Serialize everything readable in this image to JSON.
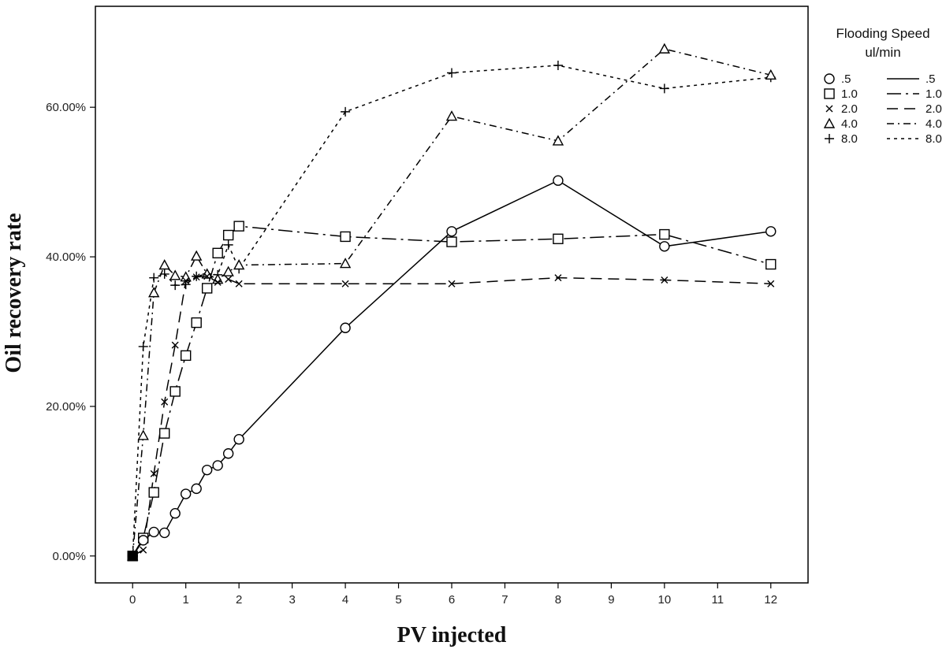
{
  "chart_data": {
    "type": "line",
    "xlabel": "PV injected",
    "ylabel": "Oil recovery rate",
    "xlim": [
      -0.7,
      12.7
    ],
    "ylim": [
      -0.036,
      0.735
    ],
    "xticks": [
      0,
      1,
      2,
      3,
      4,
      5,
      6,
      7,
      8,
      9,
      10,
      11,
      12
    ],
    "yticks": [
      0,
      0.2,
      0.4,
      0.6
    ],
    "ytick_labels": [
      "0.00%",
      "20.00%",
      "40.00%",
      "60.00%"
    ],
    "grid": false,
    "legend": {
      "title_lines": [
        "Flooding Speed",
        "ul/min"
      ],
      "placement": "outside-right"
    },
    "series": [
      {
        "name": ".5",
        "marker": "circle",
        "line": "solid",
        "points": [
          [
            0,
            0
          ],
          [
            0.2,
            0.021
          ],
          [
            0.4,
            0.032
          ],
          [
            0.6,
            0.031
          ],
          [
            0.8,
            0.057
          ],
          [
            1.0,
            0.083
          ],
          [
            1.2,
            0.09
          ],
          [
            1.4,
            0.115
          ],
          [
            1.6,
            0.121
          ],
          [
            1.8,
            0.137
          ],
          [
            2.0,
            0.156
          ],
          [
            4.0,
            0.305
          ],
          [
            6.0,
            0.434
          ],
          [
            8.0,
            0.502
          ],
          [
            10.0,
            0.414
          ],
          [
            12.0,
            0.434
          ]
        ]
      },
      {
        "name": "1.0",
        "marker": "square",
        "line": "dash-dot-long",
        "points": [
          [
            0,
            0
          ],
          [
            0.2,
            0.024
          ],
          [
            0.4,
            0.085
          ],
          [
            0.6,
            0.164
          ],
          [
            0.8,
            0.22
          ],
          [
            1.0,
            0.268
          ],
          [
            1.2,
            0.312
          ],
          [
            1.4,
            0.358
          ],
          [
            1.6,
            0.405
          ],
          [
            1.8,
            0.429
          ],
          [
            2.0,
            0.441
          ],
          [
            4.0,
            0.427
          ],
          [
            6.0,
            0.42
          ],
          [
            8.0,
            0.424
          ],
          [
            10.0,
            0.43
          ],
          [
            12.0,
            0.39
          ]
        ]
      },
      {
        "name": "2.0",
        "marker": "x",
        "line": "dashed",
        "points": [
          [
            0,
            0
          ],
          [
            0.2,
            0.008
          ],
          [
            0.4,
            0.11
          ],
          [
            0.6,
            0.206
          ],
          [
            0.8,
            0.282
          ],
          [
            1.0,
            0.368
          ],
          [
            1.2,
            0.373
          ],
          [
            1.4,
            0.374
          ],
          [
            1.6,
            0.366
          ],
          [
            1.8,
            0.37
          ],
          [
            2.0,
            0.364
          ],
          [
            4.0,
            0.364
          ],
          [
            6.0,
            0.364
          ],
          [
            8.0,
            0.372
          ],
          [
            10.0,
            0.369
          ],
          [
            12.0,
            0.364
          ]
        ]
      },
      {
        "name": "4.0",
        "marker": "triangle",
        "line": "dash-dot",
        "points": [
          [
            0,
            0
          ],
          [
            0.2,
            0.161
          ],
          [
            0.4,
            0.352
          ],
          [
            0.6,
            0.389
          ],
          [
            0.8,
            0.375
          ],
          [
            1.0,
            0.373
          ],
          [
            1.2,
            0.401
          ],
          [
            1.4,
            0.377
          ],
          [
            1.6,
            0.37
          ],
          [
            1.8,
            0.38
          ],
          [
            2.0,
            0.389
          ],
          [
            4.0,
            0.391
          ],
          [
            6.0,
            0.588
          ],
          [
            8.0,
            0.555
          ],
          [
            10.0,
            0.678
          ],
          [
            12.0,
            0.643
          ]
        ]
      },
      {
        "name": "8.0",
        "marker": "plus",
        "line": "dotted",
        "points": [
          [
            0,
            0
          ],
          [
            0.2,
            0.28
          ],
          [
            0.4,
            0.372
          ],
          [
            0.6,
            0.377
          ],
          [
            0.8,
            0.362
          ],
          [
            1.0,
            0.363
          ],
          [
            1.2,
            0.374
          ],
          [
            1.4,
            0.377
          ],
          [
            1.6,
            0.376
          ],
          [
            1.8,
            0.416
          ],
          [
            2.0,
            0.384
          ],
          [
            4.0,
            0.594
          ],
          [
            6.0,
            0.646
          ],
          [
            8.0,
            0.656
          ],
          [
            10.0,
            0.625
          ],
          [
            12.0,
            0.64
          ]
        ]
      }
    ]
  }
}
